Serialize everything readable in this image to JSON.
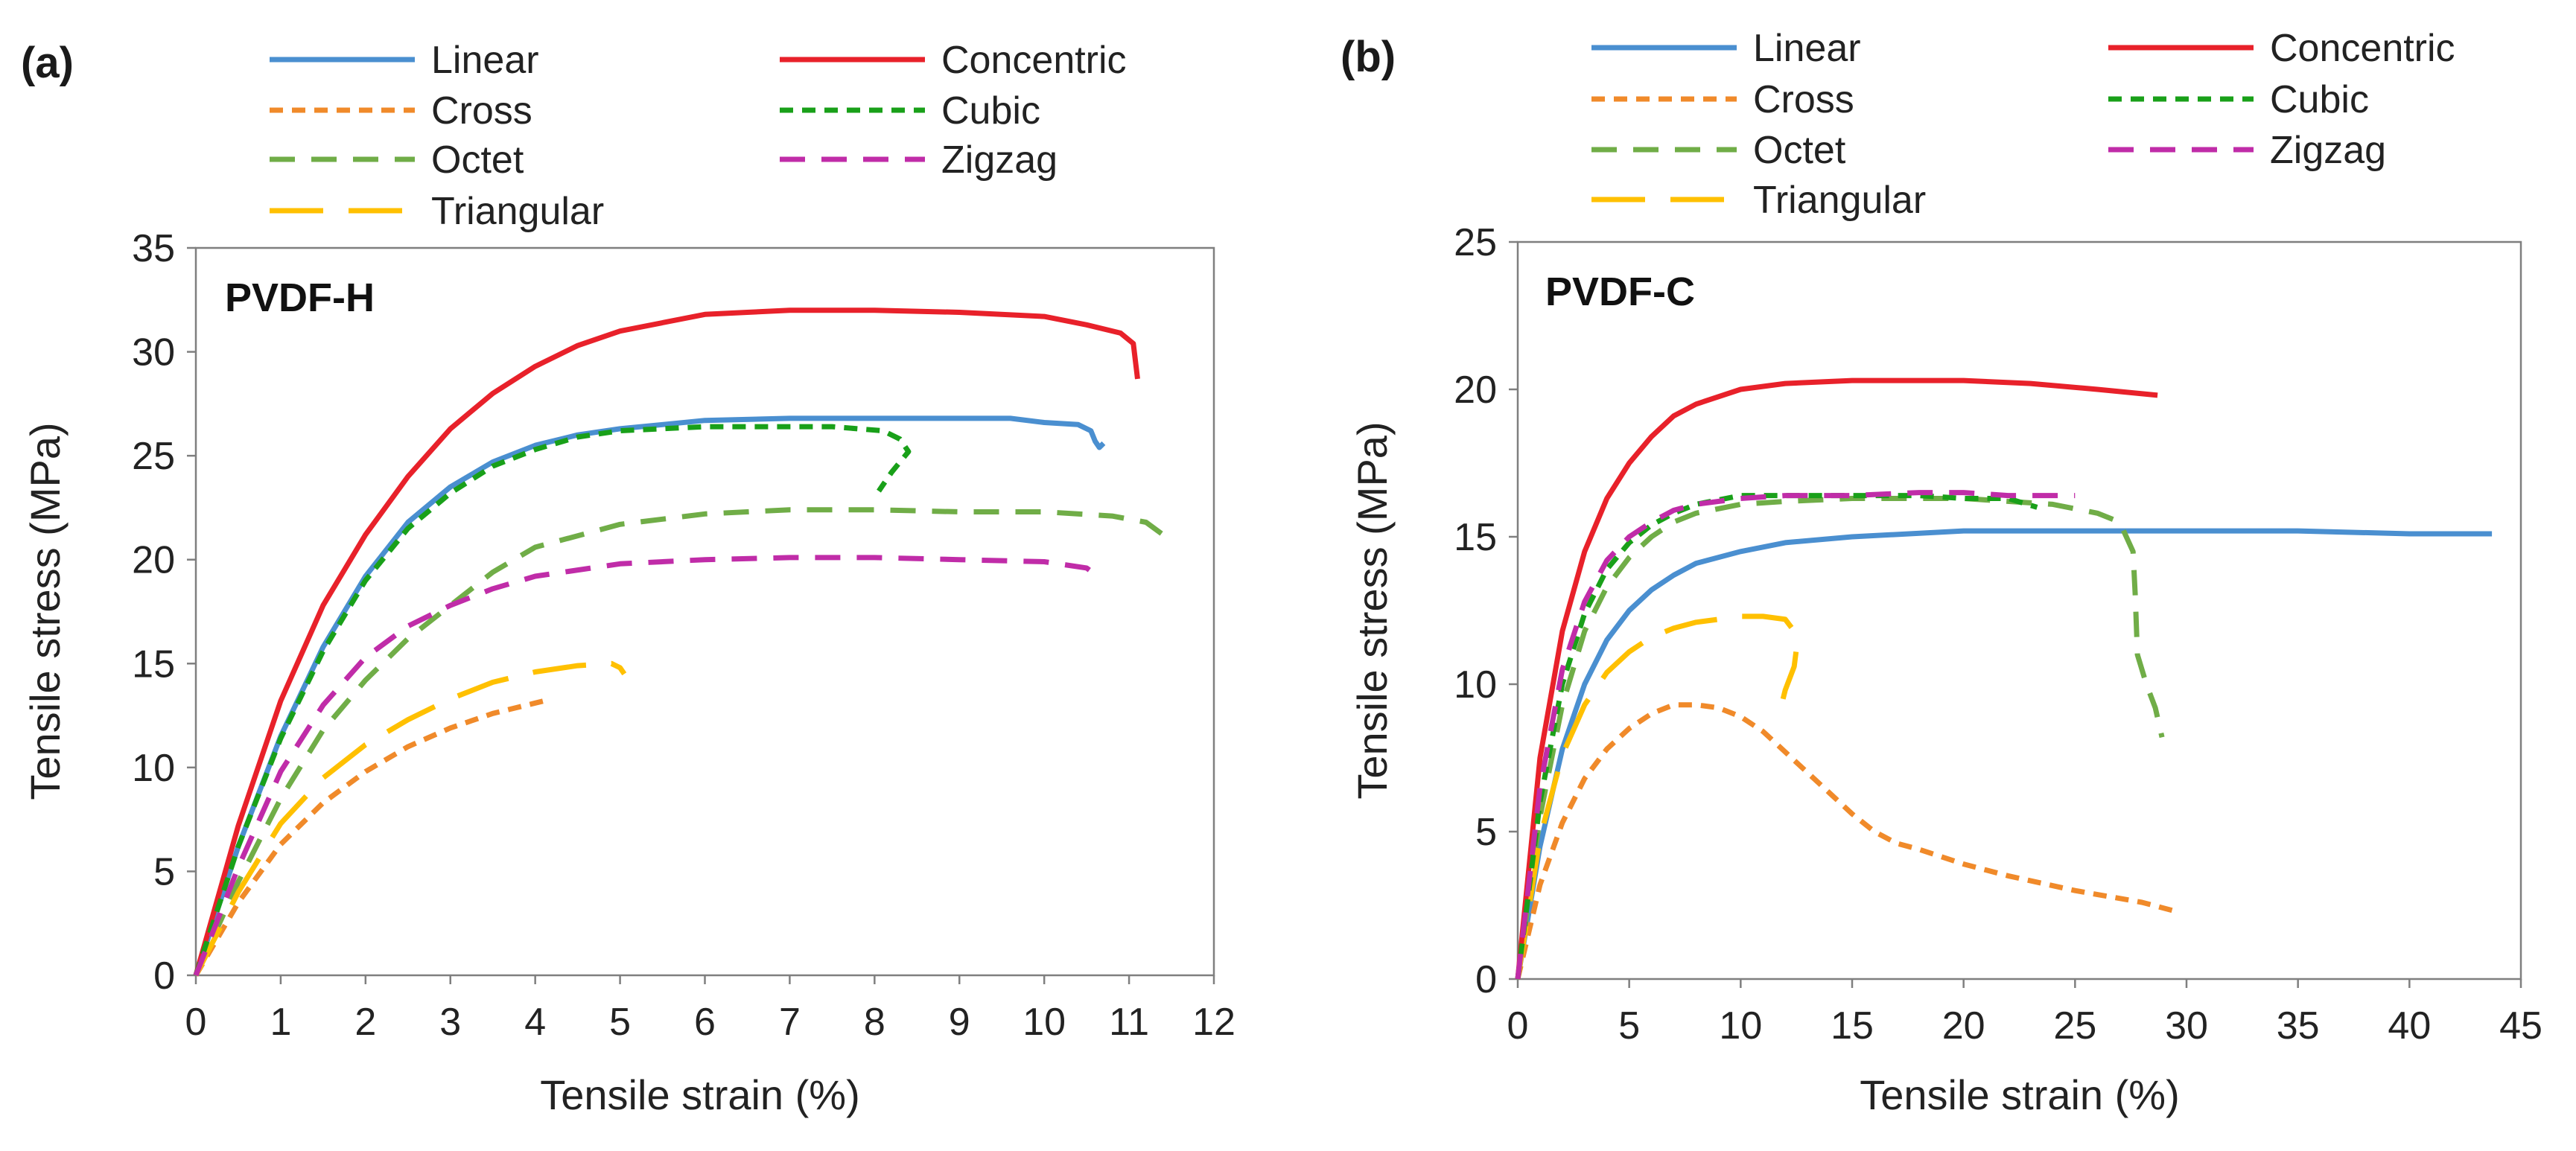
{
  "chart_data": [
    {
      "panel": "(a)",
      "type": "line",
      "title": "PVDF-H",
      "xlabel": "Tensile strain (%)",
      "ylabel": "Tensile stress (MPa)",
      "xlim": [
        0,
        12
      ],
      "ylim": [
        0,
        35
      ],
      "xticks": [
        0,
        1,
        2,
        3,
        4,
        5,
        6,
        7,
        8,
        9,
        10,
        11,
        12
      ],
      "yticks": [
        0,
        5,
        10,
        15,
        20,
        25,
        30,
        35
      ],
      "grid": false,
      "legend_position": "top",
      "series": [
        {
          "name": "Linear",
          "color": "#4a8fd0",
          "dash": "solid",
          "points": [
            [
              0,
              0
            ],
            [
              0.5,
              6.2
            ],
            [
              1,
              11.5
            ],
            [
              1.5,
              15.8
            ],
            [
              2,
              19.2
            ],
            [
              2.5,
              21.8
            ],
            [
              3,
              23.5
            ],
            [
              3.5,
              24.7
            ],
            [
              4,
              25.5
            ],
            [
              4.5,
              26
            ],
            [
              5,
              26.3
            ],
            [
              5.5,
              26.5
            ],
            [
              6,
              26.7
            ],
            [
              7,
              26.8
            ],
            [
              8,
              26.8
            ],
            [
              9,
              26.8
            ],
            [
              9.6,
              26.8
            ],
            [
              10,
              26.6
            ],
            [
              10.4,
              26.5
            ],
            [
              10.55,
              26.2
            ],
            [
              10.6,
              25.7
            ],
            [
              10.65,
              25.4
            ],
            [
              10.7,
              25.6
            ]
          ]
        },
        {
          "name": "Cross",
          "color": "#f08a2a",
          "dash": "short",
          "points": [
            [
              0,
              0
            ],
            [
              0.5,
              3.5
            ],
            [
              1,
              6.3
            ],
            [
              1.5,
              8.3
            ],
            [
              2,
              9.8
            ],
            [
              2.5,
              11
            ],
            [
              3,
              11.9
            ],
            [
              3.5,
              12.6
            ],
            [
              4,
              13.1
            ],
            [
              4.1,
              13.2
            ]
          ]
        },
        {
          "name": "Octet",
          "color": "#70ad47",
          "dash": "medium",
          "points": [
            [
              0,
              0
            ],
            [
              0.5,
              4.5
            ],
            [
              1,
              8.5
            ],
            [
              1.5,
              11.8
            ],
            [
              2,
              14.2
            ],
            [
              2.5,
              16.2
            ],
            [
              3,
              17.8
            ],
            [
              3.5,
              19.4
            ],
            [
              4,
              20.6
            ],
            [
              5,
              21.7
            ],
            [
              6,
              22.2
            ],
            [
              7,
              22.4
            ],
            [
              8,
              22.4
            ],
            [
              9,
              22.3
            ],
            [
              10,
              22.3
            ],
            [
              10.8,
              22.1
            ],
            [
              11.2,
              21.8
            ],
            [
              11.4,
              21.2
            ]
          ]
        },
        {
          "name": "Triangular",
          "color": "#ffc000",
          "dash": "long",
          "points": [
            [
              0,
              0
            ],
            [
              0.5,
              4
            ],
            [
              1,
              7.3
            ],
            [
              1.5,
              9.5
            ],
            [
              2,
              11.1
            ],
            [
              2.5,
              12.3
            ],
            [
              3,
              13.3
            ],
            [
              3.5,
              14.1
            ],
            [
              4,
              14.6
            ],
            [
              4.5,
              14.9
            ],
            [
              4.9,
              15
            ],
            [
              5,
              14.8
            ],
            [
              5.05,
              14.5
            ]
          ]
        },
        {
          "name": "Concentric",
          "color": "#e8212a",
          "dash": "solid",
          "points": [
            [
              0,
              0
            ],
            [
              0.5,
              7.2
            ],
            [
              1,
              13.2
            ],
            [
              1.5,
              17.8
            ],
            [
              2,
              21.2
            ],
            [
              2.5,
              24
            ],
            [
              3,
              26.3
            ],
            [
              3.5,
              28
            ],
            [
              4,
              29.3
            ],
            [
              4.5,
              30.3
            ],
            [
              5,
              31
            ],
            [
              5.5,
              31.4
            ],
            [
              6,
              31.8
            ],
            [
              6.5,
              31.9
            ],
            [
              7,
              32
            ],
            [
              8,
              32
            ],
            [
              9,
              31.9
            ],
            [
              10,
              31.7
            ],
            [
              10.5,
              31.3
            ],
            [
              10.9,
              30.9
            ],
            [
              11.05,
              30.4
            ],
            [
              11.1,
              28.7
            ]
          ]
        },
        {
          "name": "Cubic",
          "color": "#19a019",
          "dash": "short",
          "points": [
            [
              0,
              0
            ],
            [
              0.5,
              6.2
            ],
            [
              1,
              11.4
            ],
            [
              1.5,
              15.6
            ],
            [
              2,
              19
            ],
            [
              2.5,
              21.5
            ],
            [
              3,
              23.2
            ],
            [
              3.5,
              24.5
            ],
            [
              4,
              25.3
            ],
            [
              4.5,
              25.9
            ],
            [
              5,
              26.2
            ],
            [
              6,
              26.4
            ],
            [
              7,
              26.4
            ],
            [
              7.5,
              26.4
            ],
            [
              7.8,
              26.3
            ],
            [
              8.1,
              26.2
            ],
            [
              8.3,
              25.8
            ],
            [
              8.4,
              25.2
            ],
            [
              8.2,
              24.2
            ],
            [
              8.05,
              23.3
            ]
          ]
        },
        {
          "name": "Zigzag",
          "color": "#c02ca8",
          "dash": "medium",
          "points": [
            [
              0,
              0
            ],
            [
              0.5,
              5.2
            ],
            [
              1,
              9.8
            ],
            [
              1.5,
              13
            ],
            [
              2,
              15.3
            ],
            [
              2.5,
              16.8
            ],
            [
              3,
              17.8
            ],
            [
              3.5,
              18.6
            ],
            [
              4,
              19.2
            ],
            [
              5,
              19.8
            ],
            [
              6,
              20
            ],
            [
              7,
              20.1
            ],
            [
              8,
              20.1
            ],
            [
              9,
              20
            ],
            [
              10,
              19.9
            ],
            [
              10.5,
              19.6
            ],
            [
              10.6,
              19.3
            ]
          ]
        }
      ]
    },
    {
      "panel": "(b)",
      "type": "line",
      "title": "PVDF-C",
      "xlabel": "Tensile strain (%)",
      "ylabel": "Tensile stress (MPa)",
      "xlim": [
        0,
        45
      ],
      "ylim": [
        0,
        25
      ],
      "xticks": [
        0,
        5,
        10,
        15,
        20,
        25,
        30,
        35,
        40,
        45
      ],
      "yticks": [
        0,
        5,
        10,
        15,
        20,
        25
      ],
      "grid": false,
      "legend_position": "top",
      "series": [
        {
          "name": "Linear",
          "color": "#4a8fd0",
          "dash": "solid",
          "points": [
            [
              0,
              0
            ],
            [
              1,
              4.5
            ],
            [
              2,
              7.8
            ],
            [
              3,
              10
            ],
            [
              4,
              11.5
            ],
            [
              5,
              12.5
            ],
            [
              6,
              13.2
            ],
            [
              7,
              13.7
            ],
            [
              8,
              14.1
            ],
            [
              10,
              14.5
            ],
            [
              12,
              14.8
            ],
            [
              15,
              15
            ],
            [
              20,
              15.2
            ],
            [
              25,
              15.2
            ],
            [
              30,
              15.2
            ],
            [
              35,
              15.2
            ],
            [
              40,
              15.1
            ],
            [
              43.7,
              15.1
            ]
          ]
        },
        {
          "name": "Cross",
          "color": "#f08a2a",
          "dash": "short",
          "points": [
            [
              0,
              0
            ],
            [
              1,
              3.2
            ],
            [
              2,
              5.3
            ],
            [
              3,
              6.8
            ],
            [
              4,
              7.8
            ],
            [
              5,
              8.5
            ],
            [
              6,
              9
            ],
            [
              7,
              9.3
            ],
            [
              8,
              9.3
            ],
            [
              9,
              9.2
            ],
            [
              10,
              8.9
            ],
            [
              11,
              8.4
            ],
            [
              12,
              7.7
            ],
            [
              13,
              7
            ],
            [
              14,
              6.3
            ],
            [
              15,
              5.6
            ],
            [
              16,
              5
            ],
            [
              17,
              4.6
            ],
            [
              18,
              4.4
            ],
            [
              20,
              3.9
            ],
            [
              22,
              3.5
            ],
            [
              25,
              3
            ],
            [
              28,
              2.6
            ],
            [
              29.5,
              2.3
            ]
          ]
        },
        {
          "name": "Octet",
          "color": "#70ad47",
          "dash": "medium",
          "points": [
            [
              0,
              0
            ],
            [
              1,
              5.5
            ],
            [
              2,
              9.3
            ],
            [
              3,
              11.8
            ],
            [
              4,
              13.3
            ],
            [
              5,
              14.3
            ],
            [
              6,
              15
            ],
            [
              7,
              15.5
            ],
            [
              8,
              15.8
            ],
            [
              10,
              16.1
            ],
            [
              12,
              16.2
            ],
            [
              15,
              16.3
            ],
            [
              20,
              16.3
            ],
            [
              24,
              16.1
            ],
            [
              26,
              15.8
            ],
            [
              27,
              15.5
            ],
            [
              27.6,
              14.5
            ],
            [
              27.7,
              13
            ],
            [
              27.8,
              11
            ],
            [
              28.2,
              10
            ],
            [
              28.6,
              9.2
            ],
            [
              28.9,
              8.2
            ]
          ]
        },
        {
          "name": "Triangular",
          "color": "#ffc000",
          "dash": "long",
          "points": [
            [
              0,
              0
            ],
            [
              1,
              4.8
            ],
            [
              2,
              7.6
            ],
            [
              3,
              9.3
            ],
            [
              4,
              10.4
            ],
            [
              5,
              11.1
            ],
            [
              6,
              11.6
            ],
            [
              7,
              11.9
            ],
            [
              8,
              12.1
            ],
            [
              9,
              12.2
            ],
            [
              10,
              12.3
            ],
            [
              11,
              12.3
            ],
            [
              12,
              12.2
            ],
            [
              12.4,
              11.8
            ],
            [
              12.5,
              11.2
            ],
            [
              12.4,
              10.6
            ],
            [
              12,
              9.8
            ],
            [
              11.9,
              9.5
            ]
          ]
        },
        {
          "name": "Concentric",
          "color": "#e8212a",
          "dash": "solid",
          "points": [
            [
              0,
              0
            ],
            [
              1,
              7.5
            ],
            [
              2,
              11.8
            ],
            [
              3,
              14.5
            ],
            [
              4,
              16.3
            ],
            [
              5,
              17.5
            ],
            [
              6,
              18.4
            ],
            [
              7,
              19.1
            ],
            [
              8,
              19.5
            ],
            [
              10,
              20
            ],
            [
              12,
              20.2
            ],
            [
              15,
              20.3
            ],
            [
              18,
              20.3
            ],
            [
              20,
              20.3
            ],
            [
              23,
              20.2
            ],
            [
              26,
              20
            ],
            [
              28.7,
              19.8
            ]
          ]
        },
        {
          "name": "Cubic",
          "color": "#19a019",
          "dash": "short",
          "points": [
            [
              0,
              0
            ],
            [
              1,
              6
            ],
            [
              2,
              10
            ],
            [
              3,
              12.4
            ],
            [
              4,
              13.9
            ],
            [
              5,
              14.8
            ],
            [
              6,
              15.4
            ],
            [
              7,
              15.8
            ],
            [
              8,
              16.1
            ],
            [
              10,
              16.4
            ],
            [
              12,
              16.4
            ],
            [
              15,
              16.4
            ],
            [
              18,
              16.4
            ],
            [
              20,
              16.3
            ],
            [
              22,
              16.3
            ],
            [
              23.3,
              16
            ]
          ]
        },
        {
          "name": "Zigzag",
          "color": "#c02ca8",
          "dash": "medium",
          "points": [
            [
              0,
              0
            ],
            [
              1,
              6.5
            ],
            [
              2,
              10.5
            ],
            [
              3,
              12.8
            ],
            [
              4,
              14.2
            ],
            [
              5,
              15
            ],
            [
              6,
              15.5
            ],
            [
              7,
              15.9
            ],
            [
              8,
              16.1
            ],
            [
              10,
              16.3
            ],
            [
              12,
              16.4
            ],
            [
              15,
              16.4
            ],
            [
              18,
              16.5
            ],
            [
              20,
              16.5
            ],
            [
              22,
              16.4
            ],
            [
              25,
              16.4
            ]
          ]
        }
      ]
    }
  ],
  "colors": {
    "Linear": "#4a8fd0",
    "Cross": "#f08a2a",
    "Octet": "#70ad47",
    "Triangular": "#ffc000",
    "Concentric": "#e8212a",
    "Cubic": "#19a019",
    "Zigzag": "#c02ca8"
  }
}
